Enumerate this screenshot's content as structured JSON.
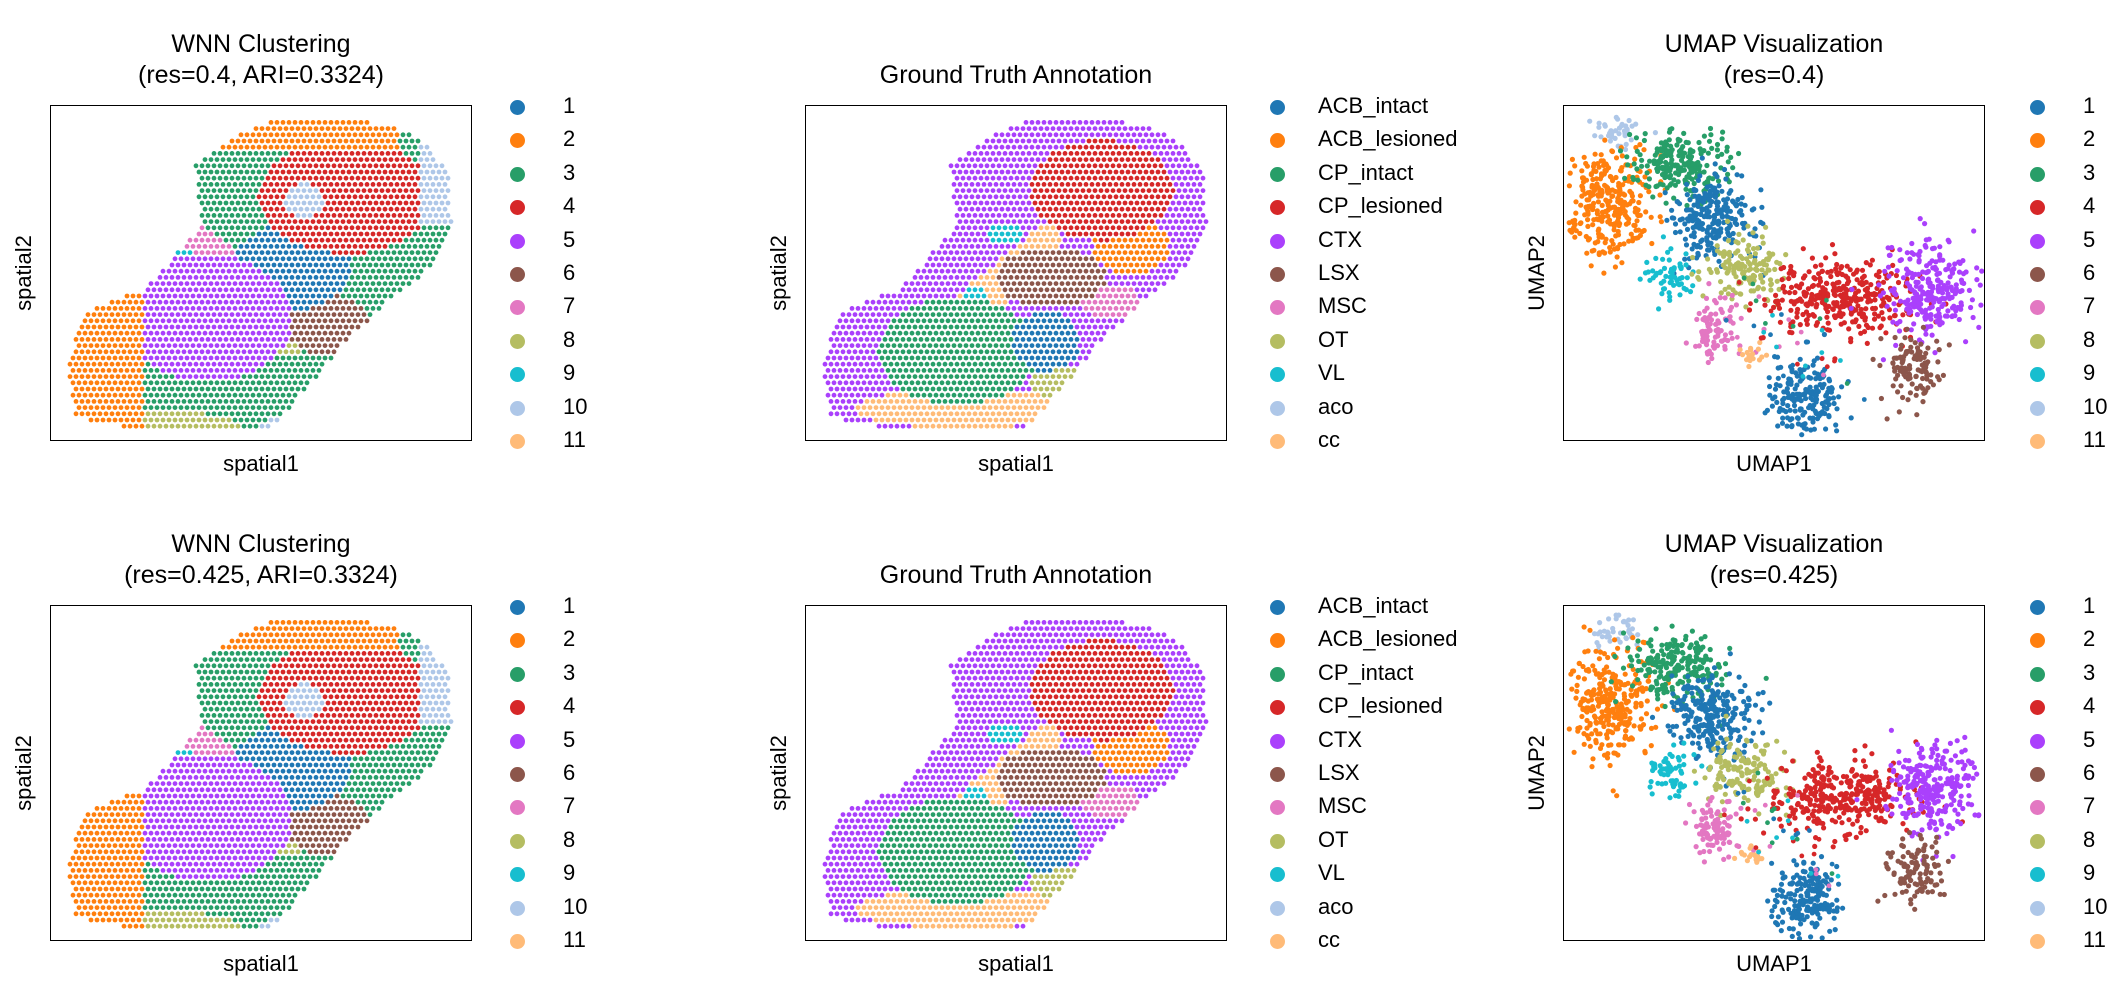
{
  "colors": [
    "#1f77b4",
    "#ff7f0e",
    "#279e68",
    "#d62728",
    "#aa40fc",
    "#8c564b",
    "#e377c2",
    "#b5bd61",
    "#17becf",
    "#aec7e8",
    "#ffbb78"
  ],
  "cluster_labels": [
    "1",
    "2",
    "3",
    "4",
    "5",
    "6",
    "7",
    "8",
    "9",
    "10",
    "11"
  ],
  "annotation_labels": [
    "ACB_intact",
    "ACB_lesioned",
    "CP_intact",
    "CP_lesioned",
    "CTX",
    "LSX",
    "MSC",
    "OT",
    "VL",
    "aco",
    "cc"
  ],
  "panels": [
    {
      "id": "wnn-1",
      "title_line1": "WNN Clustering",
      "title_line2": "(res=0.4, ARI=0.3324)",
      "xlabel": "spatial1",
      "ylabel": "spatial2",
      "kind": "spatial-cluster",
      "legend": "clusters"
    },
    {
      "id": "gt-1",
      "title_line1": "Ground Truth Annotation",
      "title_line2": "",
      "xlabel": "spatial1",
      "ylabel": "spatial2",
      "kind": "spatial-annotation",
      "legend": "annotations"
    },
    {
      "id": "umap-1",
      "title_line1": "UMAP Visualization",
      "title_line2": "(res=0.4)",
      "xlabel": "UMAP1",
      "ylabel": "UMAP2",
      "kind": "umap",
      "legend": "clusters"
    },
    {
      "id": "wnn-2",
      "title_line1": "WNN Clustering",
      "title_line2": "(res=0.425, ARI=0.3324)",
      "xlabel": "spatial1",
      "ylabel": "spatial2",
      "kind": "spatial-cluster",
      "legend": "clusters"
    },
    {
      "id": "gt-2",
      "title_line1": "Ground Truth Annotation",
      "title_line2": "",
      "xlabel": "spatial1",
      "ylabel": "spatial2",
      "kind": "spatial-annotation",
      "legend": "annotations"
    },
    {
      "id": "umap-2",
      "title_line1": "UMAP Visualization",
      "title_line2": "(res=0.425)",
      "xlabel": "UMAP1",
      "ylabel": "UMAP2",
      "kind": "umap",
      "legend": "clusters"
    }
  ],
  "chart_data": [
    {
      "type": "scatter",
      "title": "WNN Clustering (res=0.4, ARI=0.3324)",
      "xlabel": "spatial1",
      "ylabel": "spatial2",
      "legend": "right",
      "grid": false,
      "series": [
        {
          "name": "1"
        },
        {
          "name": "2"
        },
        {
          "name": "3"
        },
        {
          "name": "4"
        },
        {
          "name": "5"
        },
        {
          "name": "6"
        },
        {
          "name": "7"
        },
        {
          "name": "8"
        },
        {
          "name": "9"
        },
        {
          "name": "10"
        },
        {
          "name": "11"
        }
      ]
    },
    {
      "type": "scatter",
      "title": "Ground Truth Annotation",
      "xlabel": "spatial1",
      "ylabel": "spatial2",
      "legend": "right",
      "grid": false,
      "series": [
        {
          "name": "ACB_intact"
        },
        {
          "name": "ACB_lesioned"
        },
        {
          "name": "CP_intact"
        },
        {
          "name": "CP_lesioned"
        },
        {
          "name": "CTX"
        },
        {
          "name": "LSX"
        },
        {
          "name": "MSC"
        },
        {
          "name": "OT"
        },
        {
          "name": "VL"
        },
        {
          "name": "aco"
        },
        {
          "name": "cc"
        }
      ]
    },
    {
      "type": "scatter",
      "title": "UMAP Visualization (res=0.4)",
      "xlabel": "UMAP1",
      "ylabel": "UMAP2",
      "legend": "right",
      "grid": false,
      "series": [
        {
          "name": "1"
        },
        {
          "name": "2"
        },
        {
          "name": "3"
        },
        {
          "name": "4"
        },
        {
          "name": "5"
        },
        {
          "name": "6"
        },
        {
          "name": "7"
        },
        {
          "name": "8"
        },
        {
          "name": "9"
        },
        {
          "name": "10"
        },
        {
          "name": "11"
        }
      ]
    },
    {
      "type": "scatter",
      "title": "WNN Clustering (res=0.425, ARI=0.3324)",
      "xlabel": "spatial1",
      "ylabel": "spatial2",
      "legend": "right",
      "grid": false,
      "series": [
        {
          "name": "1"
        },
        {
          "name": "2"
        },
        {
          "name": "3"
        },
        {
          "name": "4"
        },
        {
          "name": "5"
        },
        {
          "name": "6"
        },
        {
          "name": "7"
        },
        {
          "name": "8"
        },
        {
          "name": "9"
        },
        {
          "name": "10"
        },
        {
          "name": "11"
        }
      ]
    },
    {
      "type": "scatter",
      "title": "Ground Truth Annotation",
      "xlabel": "spatial1",
      "ylabel": "spatial2",
      "legend": "right",
      "grid": false,
      "series": [
        {
          "name": "ACB_intact"
        },
        {
          "name": "ACB_lesioned"
        },
        {
          "name": "CP_intact"
        },
        {
          "name": "CP_lesioned"
        },
        {
          "name": "CTX"
        },
        {
          "name": "LSX"
        },
        {
          "name": "MSC"
        },
        {
          "name": "OT"
        },
        {
          "name": "VL"
        },
        {
          "name": "aco"
        },
        {
          "name": "cc"
        }
      ]
    },
    {
      "type": "scatter",
      "title": "UMAP Visualization (res=0.425)",
      "xlabel": "UMAP1",
      "ylabel": "UMAP2",
      "legend": "right",
      "grid": false,
      "series": [
        {
          "name": "1"
        },
        {
          "name": "2"
        },
        {
          "name": "3"
        },
        {
          "name": "4"
        },
        {
          "name": "5"
        },
        {
          "name": "6"
        },
        {
          "name": "7"
        },
        {
          "name": "8"
        },
        {
          "name": "9"
        },
        {
          "name": "10"
        },
        {
          "name": "11"
        }
      ]
    }
  ]
}
